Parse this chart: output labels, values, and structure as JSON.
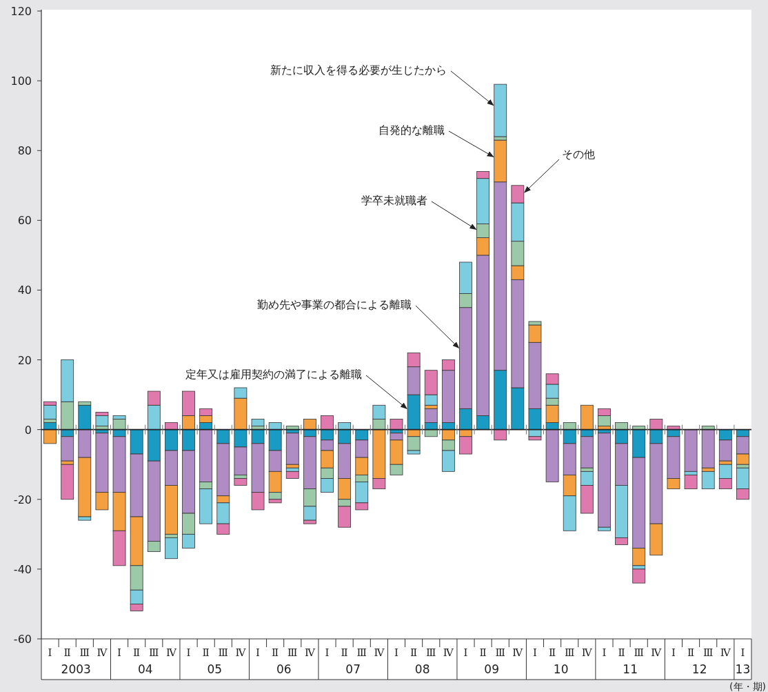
{
  "chart_data": {
    "type": "bar",
    "stacked": true,
    "categories": [
      "Ⅰ",
      "Ⅱ",
      "Ⅲ",
      "Ⅳ",
      "Ⅰ",
      "Ⅱ",
      "Ⅲ",
      "Ⅳ",
      "Ⅰ",
      "Ⅱ",
      "Ⅲ",
      "Ⅳ",
      "Ⅰ",
      "Ⅱ",
      "Ⅲ",
      "Ⅳ",
      "Ⅰ",
      "Ⅱ",
      "Ⅲ",
      "Ⅳ",
      "Ⅰ",
      "Ⅱ",
      "Ⅲ",
      "Ⅳ",
      "Ⅰ",
      "Ⅱ",
      "Ⅲ",
      "Ⅳ",
      "Ⅰ",
      "Ⅱ",
      "Ⅲ",
      "Ⅳ",
      "Ⅰ",
      "Ⅱ",
      "Ⅲ",
      "Ⅳ",
      "Ⅰ",
      "Ⅱ",
      "Ⅲ",
      "Ⅳ",
      "Ⅰ"
    ],
    "ylim": [
      -60,
      120
    ],
    "yticks": [
      -60,
      -40,
      -20,
      0,
      20,
      40,
      60,
      80,
      100,
      120
    ],
    "series": [
      {
        "name": "定年又は雇用契約の満了による離職",
        "color": "#1a9bc4",
        "values": [
          2,
          -2,
          7,
          -1,
          -2,
          -7,
          -9,
          -6,
          -6,
          2,
          -4,
          -5,
          -4,
          -6,
          -1,
          -2,
          -3,
          -4,
          -3,
          0,
          -1,
          10,
          2,
          2,
          6,
          4,
          17,
          12,
          6,
          2,
          -4,
          -2,
          -1,
          -4,
          -8,
          -4,
          -2,
          0,
          0,
          -3,
          -2
        ]
      },
      {
        "name": "勤め先や事業の都合による離職",
        "color": "#b08cc4",
        "values": [
          0,
          -7,
          -8,
          -17,
          -16,
          -18,
          -23,
          -10,
          -18,
          -15,
          -15,
          -8,
          -14,
          -6,
          -9,
          -15,
          -3,
          -10,
          -5,
          0,
          -2,
          8,
          4,
          15,
          29,
          46,
          54,
          31,
          19,
          -15,
          -9,
          -9,
          -27,
          -12,
          -26,
          -23,
          -12,
          -12,
          -11,
          -6,
          -5
        ]
      },
      {
        "name": "自発的な離職",
        "color": "#f5a040",
        "values": [
          -4,
          -1,
          -17,
          -5,
          -11,
          -14,
          0,
          -14,
          4,
          2,
          -2,
          9,
          0,
          -6,
          -1,
          3,
          -5,
          -6,
          -5,
          -14,
          -7,
          -2,
          1,
          -3,
          -2,
          5,
          12,
          4,
          5,
          5,
          -6,
          7,
          1,
          0,
          -5,
          -9,
          -3,
          0,
          -1,
          -1,
          -3
        ]
      },
      {
        "name": "学卒未就職者",
        "color": "#9ccaa8",
        "values": [
          1,
          8,
          1,
          1,
          3,
          -7,
          -3,
          -1,
          -6,
          -2,
          0,
          -1,
          1,
          -2,
          1,
          -5,
          -3,
          -2,
          -2,
          3,
          -3,
          -4,
          -2,
          -3,
          4,
          4,
          1,
          7,
          1,
          2,
          2,
          -1,
          3,
          2,
          1,
          0,
          0,
          0,
          1,
          0,
          -1
        ]
      },
      {
        "name": "新たに収入を得る必要が生じたから",
        "color": "#7dcde0",
        "values": [
          4,
          12,
          -1,
          3,
          1,
          -4,
          7,
          -6,
          -4,
          -10,
          -6,
          3,
          2,
          2,
          -1,
          -4,
          -4,
          2,
          -6,
          4,
          0,
          -1,
          3,
          -6,
          9,
          13,
          15,
          11,
          -2,
          4,
          -10,
          -4,
          -1,
          -15,
          -1,
          0,
          0,
          -1,
          -5,
          -4,
          -6
        ]
      },
      {
        "name": "その他",
        "color": "#e07aae",
        "values": [
          1,
          -10,
          0,
          1,
          -10,
          -2,
          4,
          2,
          7,
          2,
          -3,
          -2,
          -5,
          -1,
          -2,
          -1,
          4,
          -6,
          -2,
          -3,
          3,
          4,
          7,
          3,
          -5,
          2,
          -3,
          5,
          -1,
          3,
          0,
          -8,
          2,
          -2,
          -4,
          3,
          1,
          -4,
          0,
          -3,
          -3
        ]
      }
    ],
    "annotations": [
      "2003",
      "04",
      "05",
      "06",
      "07",
      "08",
      "09",
      "10",
      "11",
      "12",
      "13",
      "(年・期)"
    ]
  }
}
